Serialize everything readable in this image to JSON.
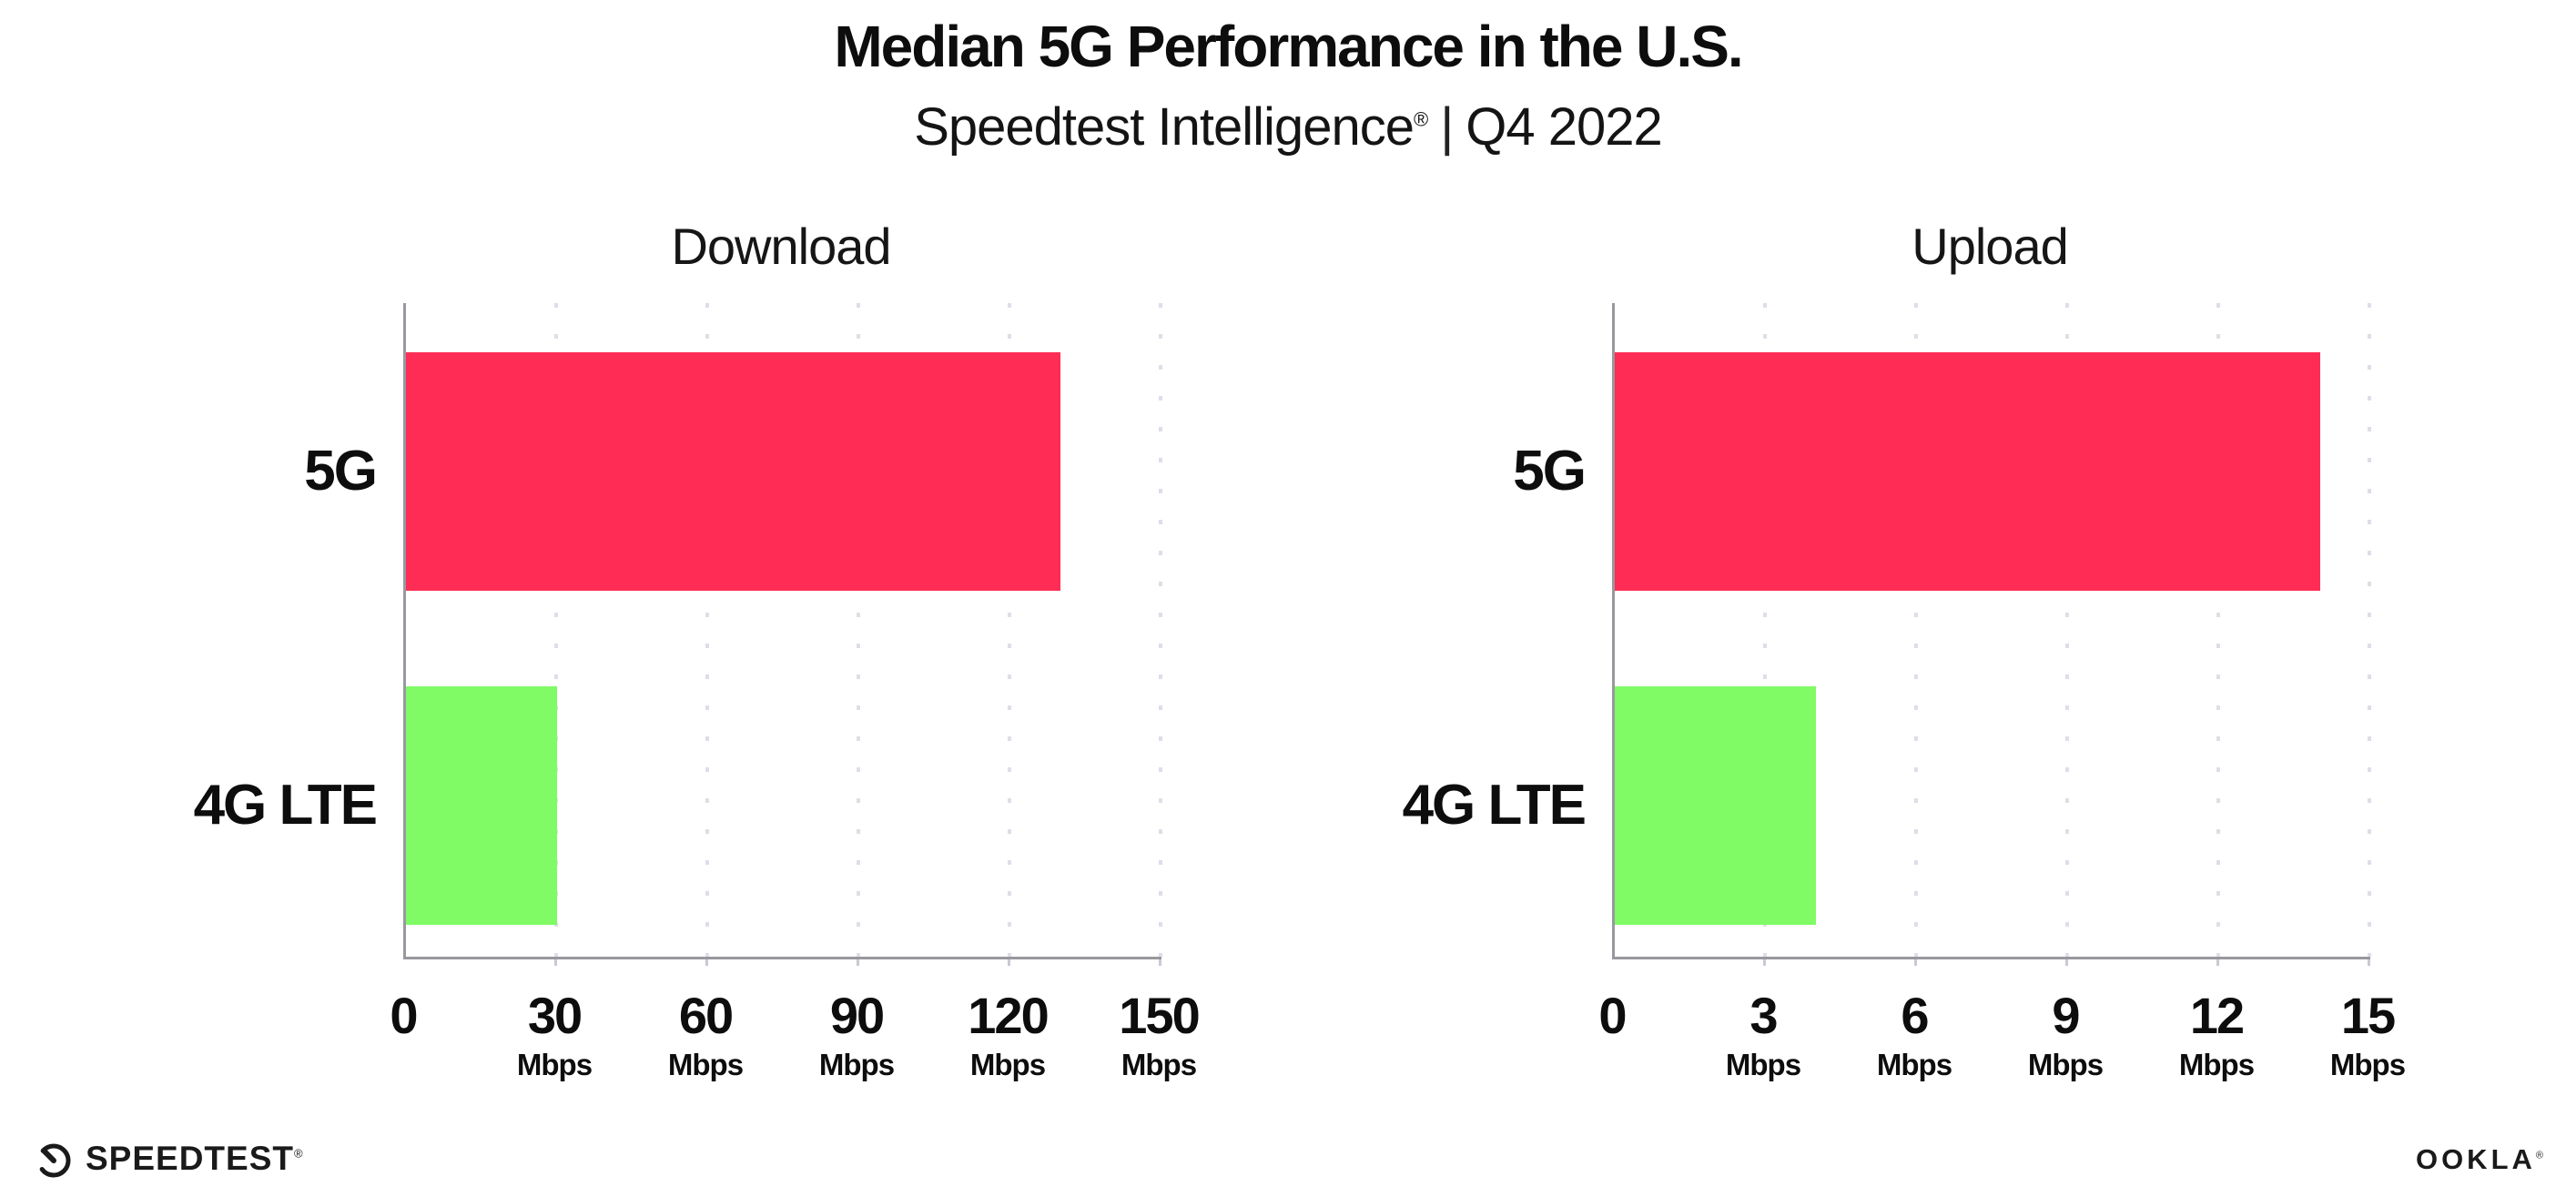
{
  "header": {
    "title": "Median 5G Performance in the U.S.",
    "subtitle_brand": "Speedtest Intelligence",
    "subtitle_reg": "®",
    "subtitle_divider": "|",
    "subtitle_period": "Q4 2022"
  },
  "chart_data": [
    {
      "type": "bar",
      "orientation": "horizontal",
      "title": "Download",
      "categories": [
        "5G",
        "4G LTE"
      ],
      "values": [
        130,
        30
      ],
      "unit": "Mbps",
      "xlim": [
        0,
        150
      ],
      "ticks": [
        0,
        30,
        60,
        90,
        120,
        150
      ],
      "bar_colors": [
        "#ff2d55",
        "#80fb66"
      ],
      "grid": "dotted-vertical",
      "legend": "none"
    },
    {
      "type": "bar",
      "orientation": "horizontal",
      "title": "Upload",
      "categories": [
        "5G",
        "4G LTE"
      ],
      "values": [
        14,
        4
      ],
      "unit": "Mbps",
      "xlim": [
        0,
        15
      ],
      "ticks": [
        0,
        3,
        6,
        9,
        12,
        15
      ],
      "bar_colors": [
        "#ff2d55",
        "#80fb66"
      ],
      "grid": "dotted-vertical",
      "legend": "none"
    }
  ],
  "colors": {
    "bar_5g": "#ff2d55",
    "bar_4g_lte": "#80fb66",
    "axis": "#98989e",
    "grid_dot": "#dedee8",
    "text": "#0d0d0d"
  },
  "footer": {
    "speedtest_label": "SPEEDTEST",
    "speedtest_reg": "®",
    "ookla_label": "OOKLA",
    "ookla_reg": "®"
  }
}
